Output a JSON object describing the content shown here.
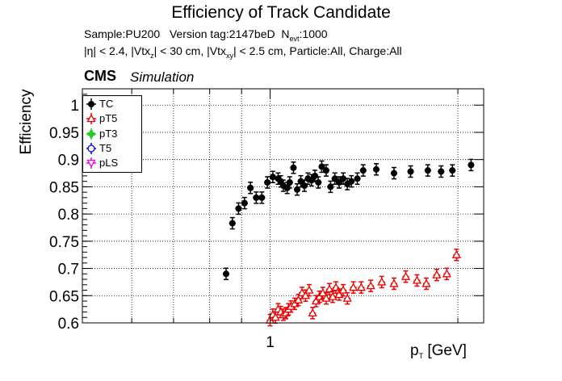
{
  "chart_data": {
    "type": "scatter",
    "title": "Efficiency of Track Candidate",
    "subtitle_line1": {
      "sample": "Sample:PU200",
      "version": "Version tag:2147beD",
      "nevt_prefix": "N",
      "nevt_sub": "evt",
      "nevt_value": ":1000"
    },
    "subtitle_line2": {
      "eta": "|η| < 2.4, |Vtx",
      "sub_z": "z",
      "mid": "| < 30 cm, |Vtx",
      "sub_xy": "xy",
      "rest": "| < 2.5 cm, Particle:All, Charge:All"
    },
    "cms_label": "CMS",
    "cms_sublabel": "Simulation",
    "xlabel": {
      "main": "p",
      "sub": "T",
      "unit": " [GeV]"
    },
    "ylabel": "Efficiency",
    "x_scale": "log",
    "xlim": [
      0.5,
      2.2
    ],
    "ylim": [
      0.6,
      1.03
    ],
    "y_ticks": [
      0.6,
      0.65,
      0.7,
      0.75,
      0.8,
      0.85,
      0.9,
      0.95,
      1
    ],
    "y_tick_labels": [
      "0.6",
      "0.65",
      "0.7",
      "0.75",
      "0.8",
      "0.85",
      "0.9",
      "0.95",
      "1"
    ],
    "x_major_ticks": [
      1
    ],
    "x_tick_labels": [
      "1"
    ],
    "grid": true,
    "legend_position": "top-left",
    "colors": {
      "TC": "#000000",
      "pT5": "#ee0000",
      "pT3": "#22cc22",
      "T5": "#0000ee",
      "pLS": "#ee00ee"
    },
    "series": [
      {
        "name": "TC",
        "marker": "filled-circle",
        "color": "#000000",
        "points": [
          [
            0.85,
            0.69
          ],
          [
            0.87,
            0.783
          ],
          [
            0.89,
            0.81
          ],
          [
            0.91,
            0.82
          ],
          [
            0.93,
            0.848
          ],
          [
            0.95,
            0.83
          ],
          [
            0.97,
            0.83
          ],
          [
            0.99,
            0.858
          ],
          [
            1.01,
            0.868
          ],
          [
            1.03,
            0.865
          ],
          [
            1.04,
            0.86
          ],
          [
            1.05,
            0.852
          ],
          [
            1.065,
            0.848
          ],
          [
            1.075,
            0.858
          ],
          [
            1.09,
            0.885
          ],
          [
            1.105,
            0.845
          ],
          [
            1.12,
            0.86
          ],
          [
            1.135,
            0.852
          ],
          [
            1.15,
            0.865
          ],
          [
            1.165,
            0.862
          ],
          [
            1.18,
            0.87
          ],
          [
            1.195,
            0.858
          ],
          [
            1.21,
            0.887
          ],
          [
            1.23,
            0.88
          ],
          [
            1.25,
            0.85
          ],
          [
            1.27,
            0.865
          ],
          [
            1.29,
            0.858
          ],
          [
            1.31,
            0.865
          ],
          [
            1.33,
            0.855
          ],
          [
            1.35,
            0.86
          ],
          [
            1.38,
            0.865
          ],
          [
            1.41,
            0.88
          ],
          [
            1.48,
            0.882
          ],
          [
            1.58,
            0.875
          ],
          [
            1.68,
            0.878
          ],
          [
            1.79,
            0.88
          ],
          [
            1.88,
            0.878
          ],
          [
            1.96,
            0.88
          ],
          [
            2.1,
            0.89
          ]
        ]
      },
      {
        "name": "pT5",
        "marker": "open-triangle-up",
        "color": "#ee0000",
        "points": [
          [
            1.0,
            0.605
          ],
          [
            1.01,
            0.615
          ],
          [
            1.02,
            0.61
          ],
          [
            1.03,
            0.625
          ],
          [
            1.04,
            0.62
          ],
          [
            1.05,
            0.615
          ],
          [
            1.06,
            0.618
          ],
          [
            1.07,
            0.625
          ],
          [
            1.08,
            0.63
          ],
          [
            1.095,
            0.635
          ],
          [
            1.11,
            0.642
          ],
          [
            1.125,
            0.655
          ],
          [
            1.14,
            0.65
          ],
          [
            1.155,
            0.66
          ],
          [
            1.17,
            0.618
          ],
          [
            1.185,
            0.64
          ],
          [
            1.2,
            0.648
          ],
          [
            1.215,
            0.655
          ],
          [
            1.23,
            0.645
          ],
          [
            1.245,
            0.662
          ],
          [
            1.26,
            0.648
          ],
          [
            1.275,
            0.665
          ],
          [
            1.29,
            0.652
          ],
          [
            1.31,
            0.66
          ],
          [
            1.33,
            0.645
          ],
          [
            1.36,
            0.665
          ],
          [
            1.4,
            0.665
          ],
          [
            1.45,
            0.668
          ],
          [
            1.51,
            0.675
          ],
          [
            1.58,
            0.672
          ],
          [
            1.65,
            0.685
          ],
          [
            1.72,
            0.678
          ],
          [
            1.78,
            0.672
          ],
          [
            1.85,
            0.688
          ],
          [
            1.92,
            0.69
          ],
          [
            1.99,
            0.725
          ]
        ]
      },
      {
        "name": "pT3",
        "marker": "open-cross",
        "color": "#22cc22",
        "points": []
      },
      {
        "name": "T5",
        "marker": "open-circle",
        "color": "#0000ee",
        "points": []
      },
      {
        "name": "pLS",
        "marker": "open-triangle-down",
        "color": "#ee00ee",
        "points": []
      }
    ]
  }
}
